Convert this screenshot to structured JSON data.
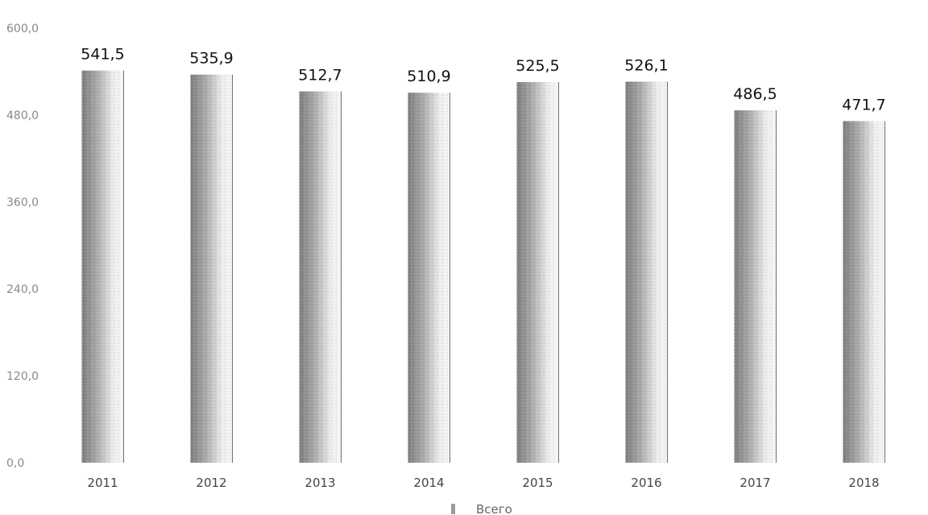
{
  "chart_data": {
    "type": "bar",
    "categories": [
      "2011",
      "2012",
      "2013",
      "2014",
      "2015",
      "2016",
      "2017",
      "2018"
    ],
    "series": [
      {
        "name": "Всего",
        "values": [
          541.5,
          535.9,
          512.7,
          510.9,
          525.5,
          526.1,
          486.5,
          471.7
        ]
      }
    ],
    "data_labels": [
      "541,5",
      "535,9",
      "512,7",
      "510,9",
      "525,5",
      "526,1",
      "486,5",
      "471,7"
    ],
    "y_ticks": [
      0,
      120,
      240,
      360,
      480,
      600
    ],
    "y_tick_labels": [
      "0,0",
      "120,0",
      "240,0",
      "360,0",
      "480,0",
      "600,0"
    ],
    "ylim": [
      0,
      600
    ],
    "grid": false,
    "legend_position": "bottom-center",
    "colors": {
      "bar_dark": "#8c8c8c",
      "bar_light": "#d6d6d6",
      "bar_edge": "#6e6e6e"
    }
  }
}
